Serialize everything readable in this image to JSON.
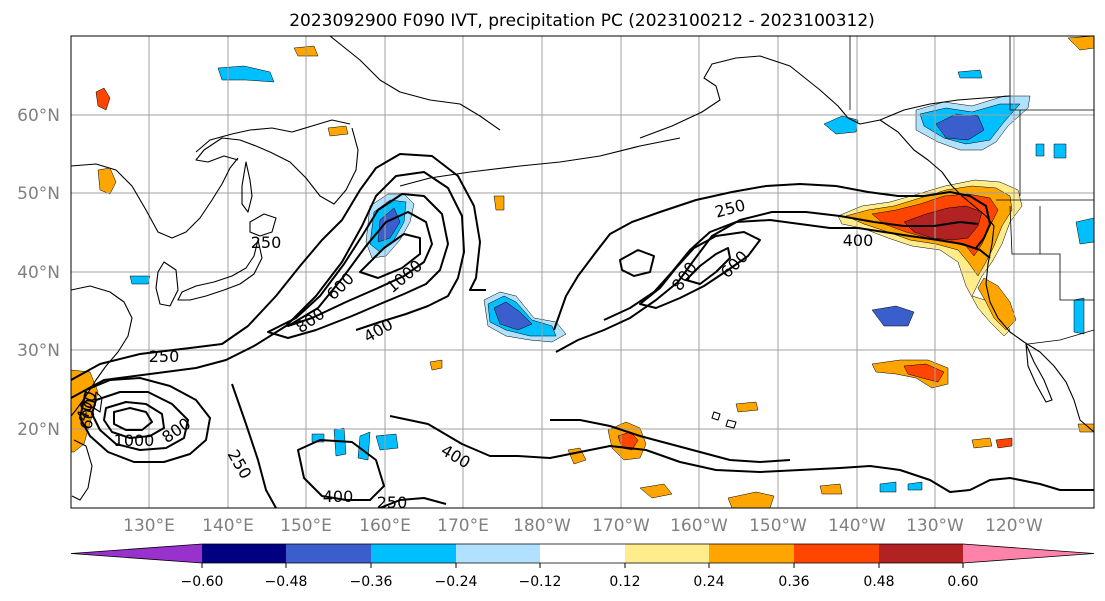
{
  "title": "2023092900 F090 IVT, precipitation PC (2023100212 - 2023100312)",
  "lat_labels": [
    "60°N",
    "50°N",
    "40°N",
    "30°N",
    "20°N"
  ],
  "lon_labels": [
    "130°E",
    "140°E",
    "150°E",
    "160°E",
    "170°E",
    "180°W",
    "170°W",
    "160°W",
    "150°W",
    "140°W",
    "130°W",
    "120°W"
  ],
  "colorbar": {
    "ticks": [
      "−0.60",
      "−0.48",
      "−0.36",
      "−0.24",
      "−0.12",
      "0.12",
      "0.24",
      "0.36",
      "0.48",
      "0.60"
    ],
    "colors": [
      "#9932cc",
      "#000080",
      "#3a5fcd",
      "#00bfff",
      "#b0e2ff",
      "#ffffff",
      "#ffec8b",
      "#ffa500",
      "#ff4500",
      "#b22222",
      "#ff82ab"
    ]
  },
  "contour_labels": [
    "250",
    "250",
    "250",
    "250",
    "250",
    "400",
    "400",
    "400",
    "400",
    "400",
    "600",
    "600",
    "600",
    "800",
    "800",
    "800",
    "1000",
    "1000"
  ]
}
